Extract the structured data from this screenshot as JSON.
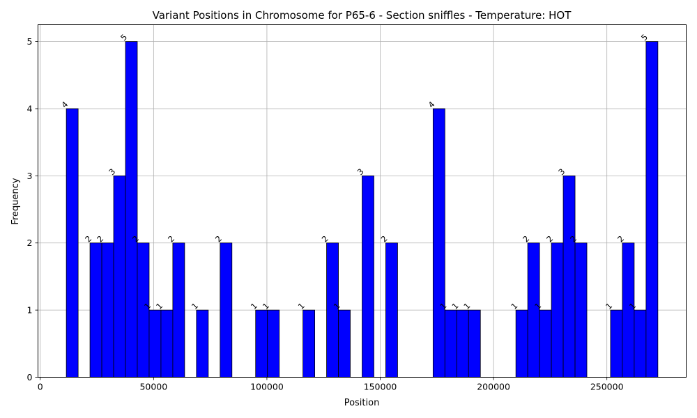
{
  "chart_data": {
    "type": "bar",
    "title": "Variant Positions in Chromosome for P65-6 - Section sniffles - Temperature: HOT",
    "xlabel": "Position",
    "ylabel": "Frequency",
    "xlim": [
      -1000,
      285000
    ],
    "ylim": [
      0,
      5.25
    ],
    "xticks": [
      0,
      50000,
      100000,
      150000,
      200000,
      250000
    ],
    "yticks": [
      0,
      1,
      2,
      3,
      4,
      5
    ],
    "grid": true,
    "bar_color": "#0000ff",
    "bar_edge_color": "#000000",
    "bin_range": [
      11500,
      272500
    ],
    "bin_count": 50,
    "values": [
      4,
      0,
      2,
      2,
      3,
      5,
      2,
      1,
      1,
      2,
      0,
      1,
      0,
      2,
      0,
      0,
      1,
      1,
      0,
      0,
      1,
      0,
      2,
      1,
      0,
      3,
      0,
      2,
      0,
      0,
      0,
      4,
      1,
      1,
      1,
      0,
      0,
      0,
      1,
      2,
      1,
      2,
      3,
      2,
      0,
      0,
      1,
      2,
      1,
      5
    ]
  }
}
